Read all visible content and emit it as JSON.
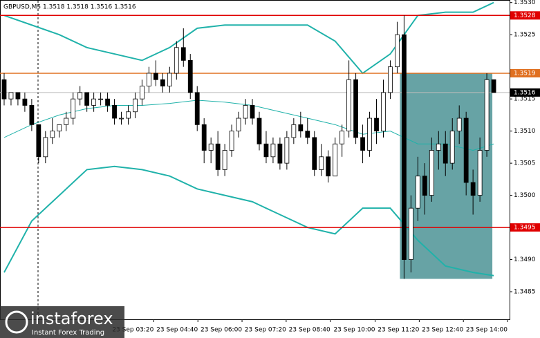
{
  "chart_data": {
    "type": "candlestick",
    "title": "GBPUSD,M5  1.3518 1.3518 1.3516 1.3516",
    "logo": {
      "name": "instaforex",
      "tagline": "Instant Forex Trading"
    },
    "xlim": [
      -0.6,
      73.3
    ],
    "ylim": [
      1.34807,
      1.35304
    ],
    "yticks": [
      {
        "value": 1.353,
        "label": "1.3530"
      },
      1.3525,
      1.3515,
      {
        "value": 1.351,
        "label": "1.3510"
      },
      1.3505,
      {
        "value": 1.35,
        "label": "1.3500"
      },
      {
        "value": 1.349,
        "label": "1.3490"
      },
      1.3485
    ],
    "xticks": [
      {
        "value": 21.7,
        "label": "23 Sep 03:20"
      },
      {
        "value": 28.1,
        "label": "23 Sep 04:40"
      },
      {
        "value": 34.5,
        "label": "23 Sep 06:00"
      },
      {
        "value": 40.9,
        "label": "23 Sep 07:20"
      },
      {
        "value": 47.3,
        "label": "23 Sep 08:40"
      },
      {
        "value": 53.8,
        "label": "23 Sep 10:00"
      },
      {
        "value": 60.2,
        "label": "23 Sep 11:20"
      },
      {
        "value": 66.6,
        "label": "23 Sep 12:40"
      },
      {
        "value": 73.0,
        "label": "23 Sep 14:00"
      }
    ],
    "levels": [
      {
        "value": 1.3528,
        "color": "#e00000"
      },
      {
        "value": 1.3519,
        "color": "#e07020"
      },
      {
        "value": 1.3495,
        "color": "#e00000"
      },
      {
        "value": 1.3516,
        "color": "#000000"
      }
    ],
    "zone": {
      "x": [
        57.4,
        70.8
      ],
      "y": [
        1.3487,
        1.3519
      ],
      "color": "#5f9ea0"
    },
    "open": [
      1.3518,
      1.3515,
      1.3516,
      1.3515,
      1.3514,
      1.3511,
      1.3506,
      1.3509,
      1.351,
      1.3511,
      1.3512,
      1.3515,
      1.3516,
      1.3514,
      1.3515,
      1.3515,
      1.3514,
      1.3512,
      1.3512,
      1.3513,
      1.3515,
      1.3517,
      1.3519,
      1.3518,
      1.3517,
      1.3519,
      1.3523,
      1.3521,
      1.3516,
      1.3511,
      1.3507,
      1.3508,
      1.3504,
      1.3507,
      1.351,
      1.3512,
      1.3514,
      1.3512,
      1.3508,
      1.3506,
      1.3508,
      1.3505,
      1.3509,
      1.3511,
      1.351,
      1.3509,
      1.3504,
      1.3506,
      1.3503,
      1.3508,
      1.351,
      1.3518,
      1.3509,
      1.3507,
      1.3512,
      1.351,
      1.3516,
      1.352,
      1.3525,
      1.349,
      1.3498,
      1.3503,
      1.35,
      1.3507,
      1.3508,
      1.3505,
      1.351,
      1.3512,
      1.3502,
      1.35,
      1.3507,
      1.3518
    ],
    "high": [
      1.3519,
      1.3516,
      1.3516,
      1.3516,
      1.3515,
      1.3511,
      1.351,
      1.3512,
      1.3511,
      1.3513,
      1.3516,
      1.3517,
      1.3516,
      1.3516,
      1.3516,
      1.3516,
      1.3515,
      1.3513,
      1.3514,
      1.3516,
      1.3518,
      1.352,
      1.3521,
      1.3519,
      1.352,
      1.3524,
      1.3526,
      1.3522,
      1.3517,
      1.3512,
      1.3509,
      1.351,
      1.3508,
      1.3511,
      1.3513,
      1.3515,
      1.3515,
      1.3513,
      1.351,
      1.3509,
      1.3509,
      1.351,
      1.3512,
      1.3513,
      1.3512,
      1.351,
      1.3508,
      1.3507,
      1.3509,
      1.3511,
      1.3521,
      1.3519,
      1.3511,
      1.3513,
      1.3515,
      1.3518,
      1.3521,
      1.3527,
      1.3528,
      1.35,
      1.3506,
      1.3505,
      1.3509,
      1.351,
      1.351,
      1.3512,
      1.3514,
      1.3513,
      1.3504,
      1.3509,
      1.3519,
      1.3518
    ],
    "low": [
      1.3514,
      1.3514,
      1.3514,
      1.3513,
      1.351,
      1.3505,
      1.3505,
      1.3508,
      1.3509,
      1.351,
      1.3511,
      1.3514,
      1.3513,
      1.3513,
      1.3514,
      1.3513,
      1.3511,
      1.3511,
      1.3511,
      1.3512,
      1.3514,
      1.3516,
      1.3517,
      1.3516,
      1.3516,
      1.3518,
      1.352,
      1.3515,
      1.351,
      1.3505,
      1.3505,
      1.3503,
      1.3503,
      1.3506,
      1.3509,
      1.3511,
      1.3511,
      1.3507,
      1.3505,
      1.3505,
      1.3504,
      1.3504,
      1.3508,
      1.3509,
      1.3508,
      1.3503,
      1.3503,
      1.3502,
      1.3503,
      1.3506,
      1.3509,
      1.3508,
      1.3505,
      1.3506,
      1.3508,
      1.3509,
      1.3515,
      1.3519,
      1.3487,
      1.3488,
      1.3496,
      1.3497,
      1.3499,
      1.3504,
      1.3503,
      1.3504,
      1.3508,
      1.35,
      1.3497,
      1.3499,
      1.3506,
      1.3516
    ],
    "close": [
      1.3515,
      1.3516,
      1.3515,
      1.3514,
      1.3511,
      1.3506,
      1.3509,
      1.351,
      1.3511,
      1.3512,
      1.3515,
      1.3516,
      1.3514,
      1.3515,
      1.3515,
      1.3514,
      1.3512,
      1.3512,
      1.3513,
      1.3515,
      1.3517,
      1.3519,
      1.3518,
      1.3517,
      1.3519,
      1.3523,
      1.3521,
      1.3516,
      1.3511,
      1.3507,
      1.3508,
      1.3504,
      1.3507,
      1.351,
      1.3512,
      1.3514,
      1.3512,
      1.3508,
      1.3506,
      1.3508,
      1.3505,
      1.3509,
      1.3511,
      1.351,
      1.3509,
      1.3504,
      1.3506,
      1.3503,
      1.3508,
      1.351,
      1.3518,
      1.3509,
      1.3507,
      1.3512,
      1.351,
      1.3516,
      1.352,
      1.3525,
      1.349,
      1.3498,
      1.3503,
      1.35,
      1.3507,
      1.3508,
      1.3505,
      1.351,
      1.3512,
      1.3502,
      1.35,
      1.3507,
      1.3518,
      1.3516
    ],
    "bands": {
      "x": [
        0,
        4,
        8,
        12,
        16,
        20,
        24,
        28,
        32,
        36,
        40,
        44,
        48,
        52,
        56,
        60,
        64,
        68,
        71
      ],
      "color": "#20b2aa",
      "series": [
        {
          "values": [
            1.3528,
            1.35265,
            1.3525,
            1.3523,
            1.3522,
            1.3521,
            1.3523,
            1.3526,
            1.35265,
            1.35265,
            1.35265,
            1.35265,
            1.3524,
            1.3519,
            1.3522,
            1.3528,
            1.35285,
            1.35285,
            1.353
          ]
        },
        {
          "values": [
            1.3509,
            1.3511,
            1.35125,
            1.35135,
            1.3514,
            1.3514,
            1.35143,
            1.35148,
            1.35145,
            1.3514,
            1.3513,
            1.3512,
            1.3511,
            1.35095,
            1.351,
            1.3508,
            1.3508,
            1.3507,
            1.3508
          ]
        },
        {
          "values": [
            1.3488,
            1.3496,
            1.35,
            1.3504,
            1.35045,
            1.3504,
            1.3503,
            1.3501,
            1.35,
            1.3499,
            1.3497,
            1.3495,
            1.3494,
            1.3498,
            1.3498,
            1.3493,
            1.3489,
            1.3488,
            1.34875
          ]
        }
      ]
    }
  }
}
